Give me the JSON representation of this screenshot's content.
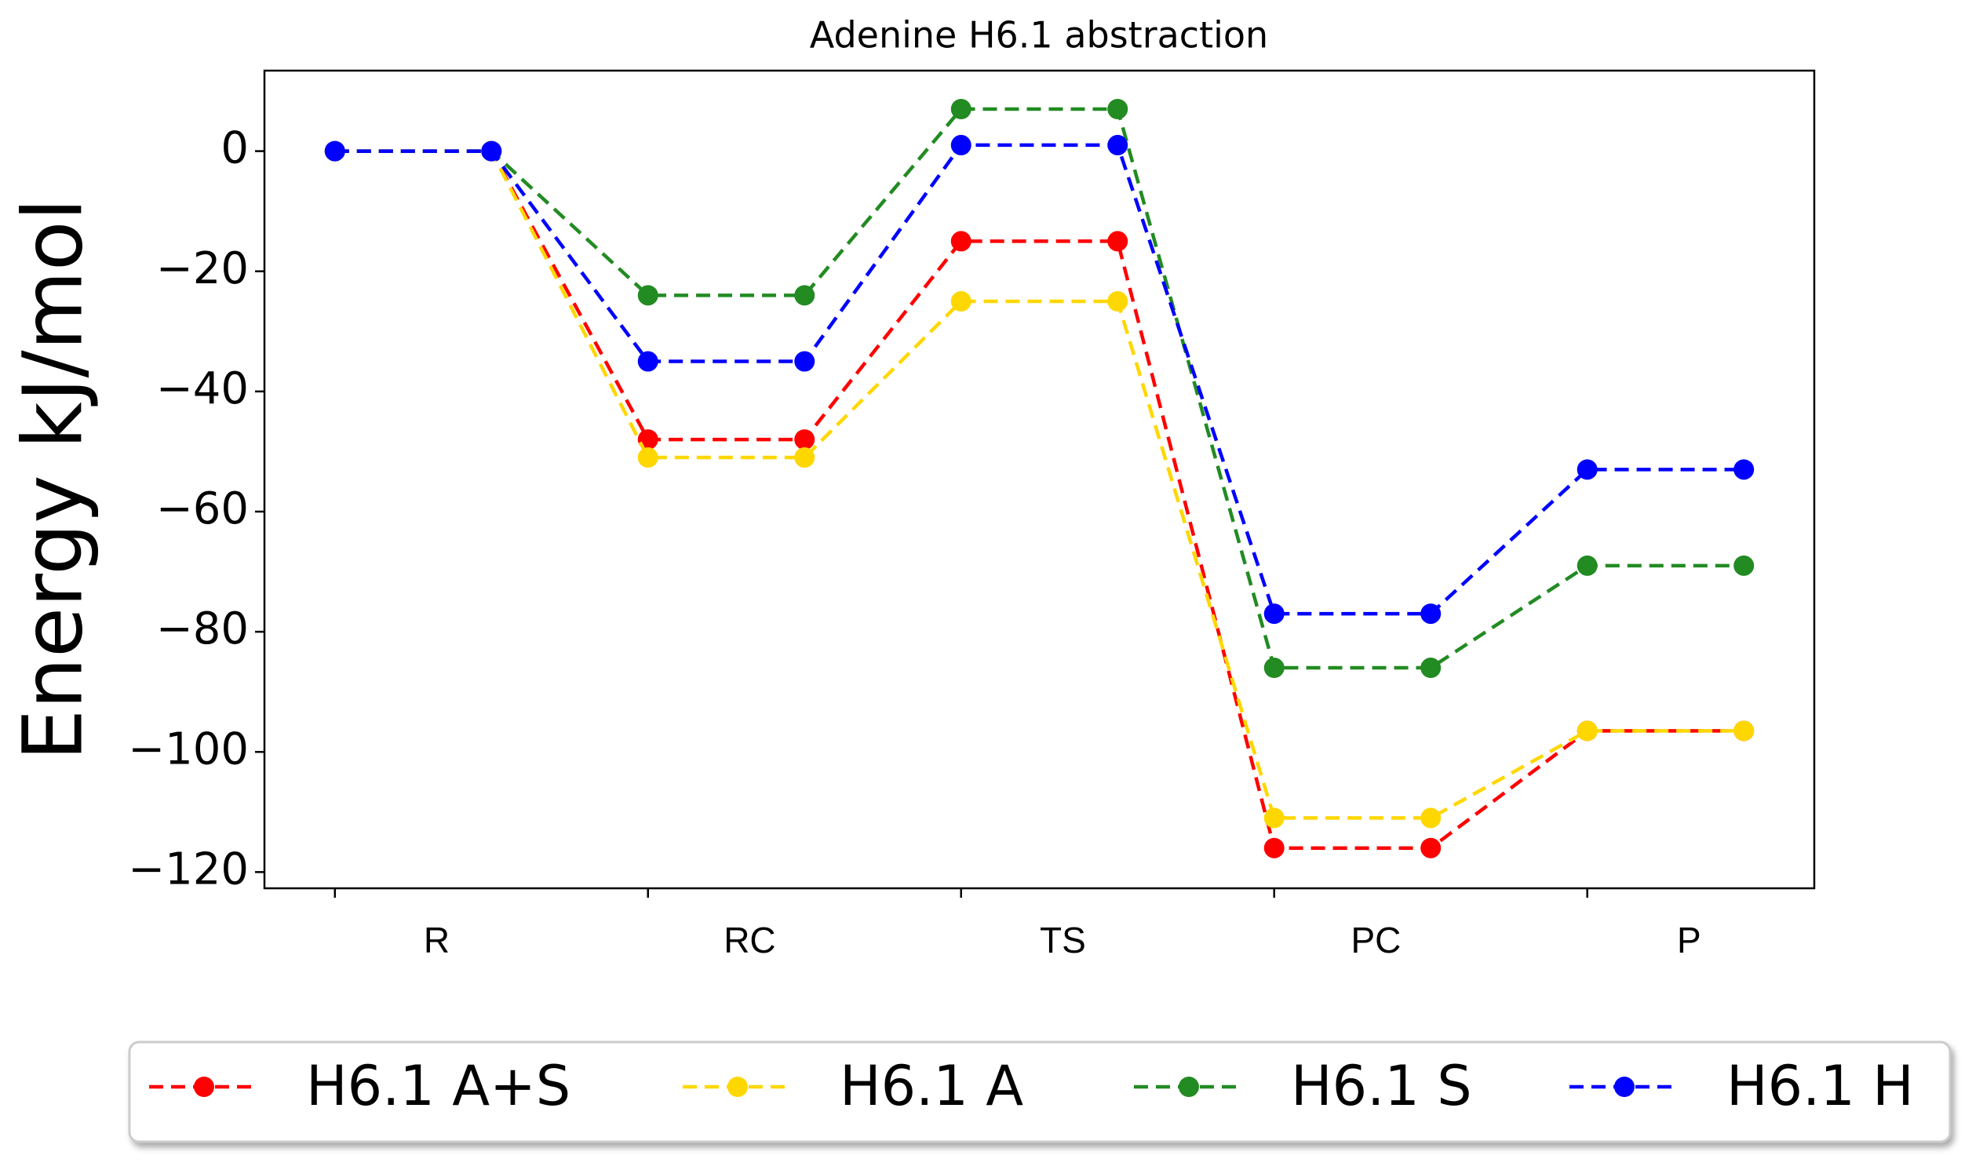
{
  "chart_data": {
    "type": "line",
    "title": "Adenine H6.1 abstraction",
    "y_label": "Energy kJ/mol",
    "x": [
      0,
      1,
      2,
      3,
      4,
      5,
      6,
      7,
      8,
      9
    ],
    "xlim": [
      -0.45,
      9.45
    ],
    "xticks": [
      {
        "value": 0,
        "label": "R"
      },
      {
        "value": 2,
        "label": "RC"
      },
      {
        "value": 4,
        "label": "TS"
      },
      {
        "value": 6,
        "label": "PC"
      },
      {
        "value": 8,
        "label": "P"
      }
    ],
    "ylim": [
      -122.7,
      13.4
    ],
    "yticks": [
      0,
      {
        "value": -20,
        "label": "−20"
      },
      {
        "value": -40,
        "label": "−40"
      },
      {
        "value": -60,
        "label": "−60"
      },
      {
        "value": -80,
        "label": "−80"
      },
      {
        "value": -100,
        "label": "−100"
      },
      {
        "value": -120,
        "label": "−120"
      }
    ],
    "line_style": "dashed",
    "markers": true,
    "legend": "bottom",
    "series": [
      {
        "name": "H6.1 A+S",
        "color": "#ff0000",
        "values": [
          0,
          0,
          -48,
          -48,
          -15,
          -15,
          -116,
          -116,
          -96.5,
          -96.5
        ]
      },
      {
        "name": "H6.1 A",
        "color": "#ffd700",
        "values": [
          0,
          0,
          -51,
          -51,
          -25,
          -25,
          -111,
          -111,
          -96.5,
          -96.5
        ]
      },
      {
        "name": "H6.1 S",
        "color": "#228b22",
        "values": [
          0,
          0,
          -24,
          -24,
          7,
          7,
          -86,
          -86,
          -69,
          -69
        ]
      },
      {
        "name": "H6.1 H",
        "color": "#0000ff",
        "values": [
          0,
          0,
          -35,
          -35,
          1,
          1,
          -77,
          -77,
          -53,
          -53
        ]
      }
    ]
  }
}
